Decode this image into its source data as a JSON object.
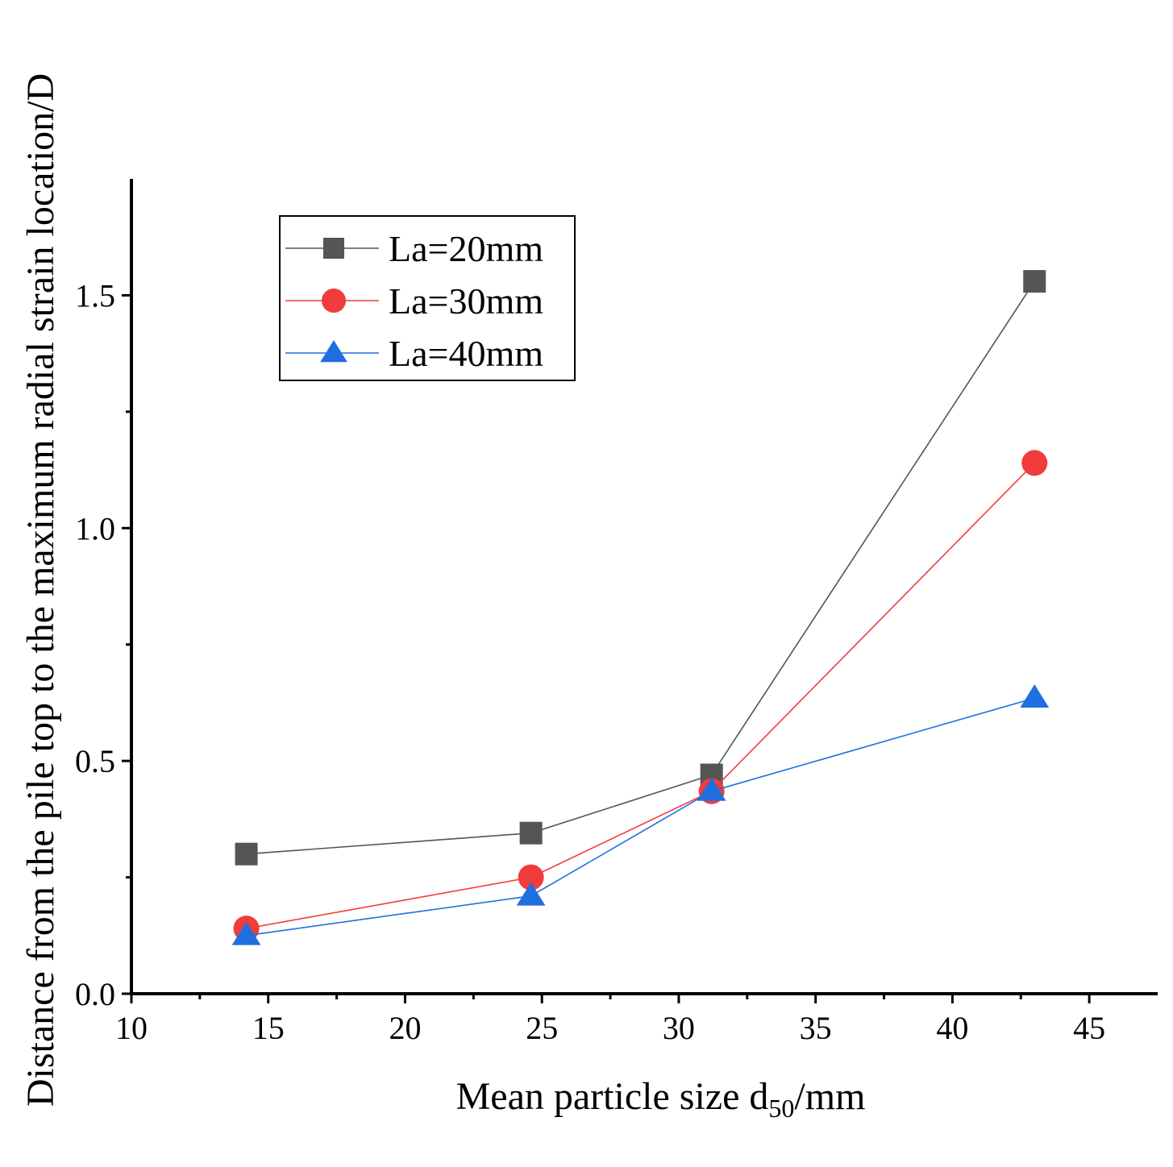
{
  "chart_data": {
    "type": "line",
    "xlabel": {
      "main": "Mean particle size d",
      "sub": "50",
      "tail": "/mm"
    },
    "ylabel": "Distance from the pile top to the maximum radial strain location/D",
    "xlim": [
      10,
      47.5
    ],
    "ylim": [
      0,
      1.75
    ],
    "xticks": [
      10,
      15,
      20,
      25,
      30,
      35,
      40,
      45
    ],
    "xtick_labels": [
      "10",
      "15",
      "20",
      "25",
      "30",
      "35",
      "40",
      "45"
    ],
    "yticks": [
      0,
      0.5,
      1.0,
      1.5
    ],
    "ytick_labels": [
      "0.0",
      "0.5",
      "1.0",
      "1.5"
    ],
    "grid": false,
    "legend_position": "top-left",
    "series": [
      {
        "name": "La=20mm",
        "color": "#555555",
        "marker": "square",
        "x": [
          14.2,
          24.6,
          31.2,
          43.0
        ],
        "y": [
          0.3,
          0.345,
          0.47,
          1.53
        ]
      },
      {
        "name": "La=30mm",
        "color": "#f03c3c",
        "marker": "circle",
        "x": [
          14.2,
          24.6,
          31.2,
          43.0
        ],
        "y": [
          0.14,
          0.25,
          0.435,
          1.14
        ]
      },
      {
        "name": "La=40mm",
        "color": "#1f6fe0",
        "marker": "triangle",
        "x": [
          14.2,
          24.6,
          31.2,
          43.0
        ],
        "y": [
          0.125,
          0.21,
          0.435,
          0.635
        ]
      }
    ]
  }
}
